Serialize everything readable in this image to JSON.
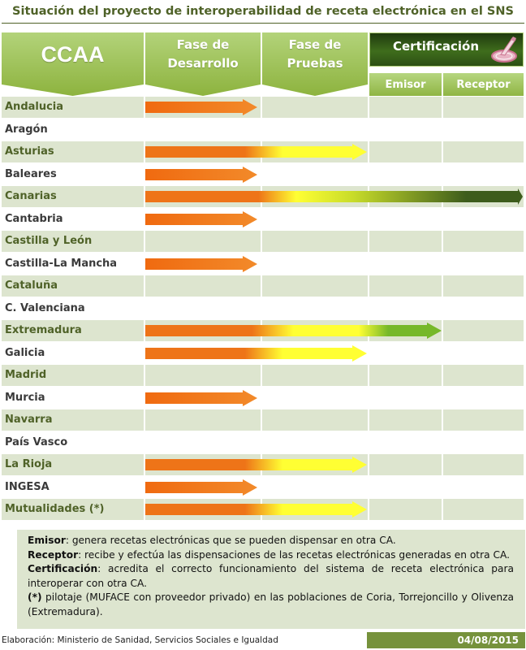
{
  "title": "Situación del proyecto de interoperabilidad de receta electrónica en el SNS",
  "header": {
    "ccaa": "CCAA",
    "fase_desarrollo": "Fase de\nDesarrollo",
    "fase_pruebas": "Fase de\nPruebas",
    "certificacion": "Certificación",
    "emisor": "Emisor",
    "receptor": "Receptor"
  },
  "colors": {
    "orange": "#ee7418",
    "yellow": "#ffff33",
    "green": "#76b82a",
    "dark_green": "#3d5c1c",
    "header_green": "#9bc24f",
    "row_shade": "#dde5cf",
    "title_green": "#4f6228"
  },
  "regions": [
    {
      "name": "Andalucia",
      "stage": "desarrollo",
      "shaded": true
    },
    {
      "name": "Aragón",
      "stage": "none",
      "shaded": false
    },
    {
      "name": "Asturias",
      "stage": "pruebas",
      "shaded": true
    },
    {
      "name": "Baleares",
      "stage": "desarrollo",
      "shaded": false
    },
    {
      "name": "Canarias",
      "stage": "receptor",
      "shaded": true
    },
    {
      "name": "Cantabria",
      "stage": "desarrollo",
      "shaded": false
    },
    {
      "name": "Castilla y León",
      "stage": "none",
      "shaded": true
    },
    {
      "name": "Castilla-La Mancha",
      "stage": "desarrollo",
      "shaded": false
    },
    {
      "name": "Cataluña",
      "stage": "none",
      "shaded": true
    },
    {
      "name": "C. Valenciana",
      "stage": "none",
      "shaded": false
    },
    {
      "name": "Extremadura",
      "stage": "emisor",
      "shaded": true
    },
    {
      "name": "Galicia",
      "stage": "pruebas",
      "shaded": false
    },
    {
      "name": "Madrid",
      "stage": "none",
      "shaded": true
    },
    {
      "name": "Murcia",
      "stage": "desarrollo",
      "shaded": false
    },
    {
      "name": "Navarra",
      "stage": "none",
      "shaded": true
    },
    {
      "name": "País Vasco",
      "stage": "none",
      "shaded": false
    },
    {
      "name": "La Rioja",
      "stage": "pruebas",
      "shaded": true
    },
    {
      "name": "INGESA",
      "stage": "desarrollo",
      "shaded": false
    },
    {
      "name": "Mutualidades (*)",
      "stage": "pruebas",
      "shaded": true
    }
  ],
  "legend": {
    "emisor_term": "Emisor",
    "emisor_text": ": genera recetas electrónicas que se pueden dispensar en otra CA.",
    "receptor_term": "Receptor",
    "receptor_text": ": recibe y efectúa las dispensaciones  de las recetas electrónicas generadas  en otra CA.",
    "certificacion_term": "Certificación",
    "certificacion_text": ":  acredita  el  correcto  funcionamiento  del  sistema  de  receta  electrónica  para interoperar  con otra CA.",
    "note_term": "(*)",
    "note_text": " pilotaje  (MUFACE  con  proveedor  privado)  en  las  poblaciones  de  Coria,  Torrejoncillo  y Olivenza (Extremadura)."
  },
  "footer": {
    "source": "Elaboración: Ministerio de Sanidad, Servicios Sociales e Igualdad",
    "date": "04/08/2015"
  }
}
